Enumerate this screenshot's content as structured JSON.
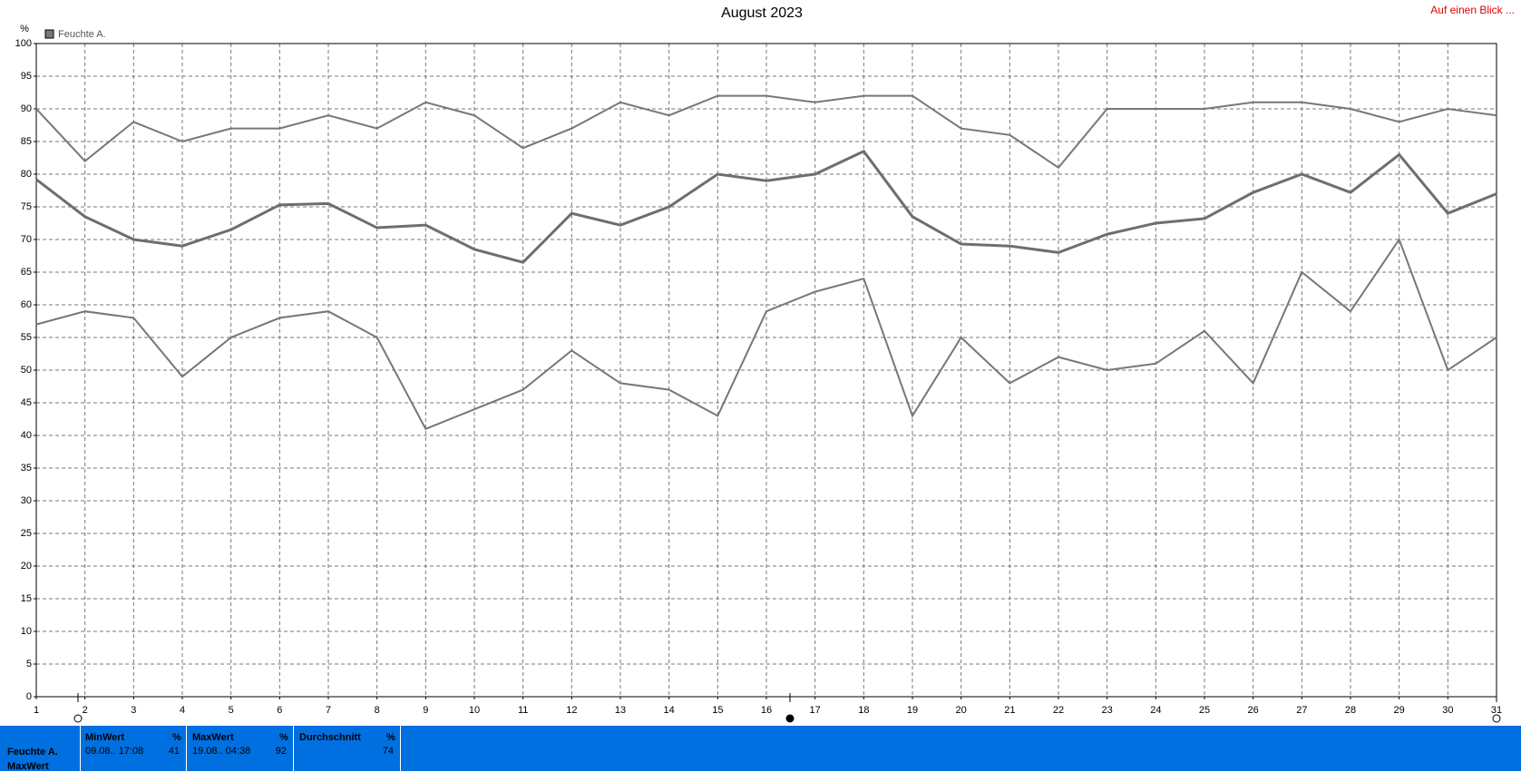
{
  "chart_data": {
    "type": "line",
    "title": "August 2023",
    "ylabel": "%",
    "legend": "Feuchte A.",
    "legend_color": "#777777",
    "link": "Auf einen Blick ...",
    "x": [
      1,
      2,
      3,
      4,
      5,
      6,
      7,
      8,
      9,
      10,
      11,
      12,
      13,
      14,
      15,
      16,
      17,
      18,
      19,
      20,
      21,
      22,
      23,
      24,
      25,
      26,
      27,
      28,
      29,
      30,
      31
    ],
    "xlim": [
      1,
      31
    ],
    "xticks": [
      1,
      2,
      3,
      4,
      5,
      6,
      7,
      8,
      9,
      10,
      11,
      12,
      13,
      14,
      15,
      16,
      17,
      18,
      19,
      20,
      21,
      22,
      23,
      24,
      25,
      26,
      27,
      28,
      29,
      30,
      31
    ],
    "ylim": [
      0,
      100
    ],
    "yticks": [
      0,
      5,
      10,
      15,
      20,
      25,
      30,
      35,
      40,
      45,
      50,
      55,
      60,
      65,
      70,
      75,
      80,
      85,
      90,
      95,
      100
    ],
    "grid": true,
    "series": [
      {
        "color": "#777777",
        "values": [
          90,
          82,
          88,
          85,
          87,
          87,
          89,
          87,
          91,
          89,
          84,
          87,
          91,
          89,
          92,
          92,
          91,
          92,
          92,
          87,
          86,
          81,
          90,
          90,
          90,
          91,
          91,
          90,
          88,
          90,
          89
        ]
      },
      {
        "color": "#6e6e6e",
        "values": [
          79.2,
          73.5,
          70,
          69,
          71.5,
          75.3,
          75.5,
          71.8,
          72.2,
          68.5,
          66.5,
          74,
          72.2,
          75,
          80,
          79,
          80,
          83.5,
          73.5,
          69.3,
          69,
          68,
          70.8,
          72.5,
          73.2,
          77.2,
          80,
          77.2,
          83,
          74,
          77
        ]
      },
      {
        "color": "#777777",
        "values": [
          57,
          59,
          58,
          49,
          55,
          58,
          59,
          55,
          41,
          44,
          47,
          53,
          48,
          47,
          43,
          59,
          62,
          64,
          43,
          55,
          48,
          52,
          50,
          51,
          56,
          48,
          65,
          59,
          70,
          50,
          55
        ]
      }
    ]
  },
  "table": {
    "columns": [
      {
        "name": "MinWert",
        "unit": "%"
      },
      {
        "name": "MaxWert",
        "unit": "%"
      },
      {
        "name": "Durchschnitt",
        "unit": "%"
      }
    ],
    "rows": [
      {
        "label": "Feuchte A.",
        "min_time": "09.08.. 17:08",
        "min": 41,
        "max_time": "19.08.. 04:38",
        "max": 92,
        "avg": 74
      }
    ],
    "next_label": "MaxWert"
  }
}
